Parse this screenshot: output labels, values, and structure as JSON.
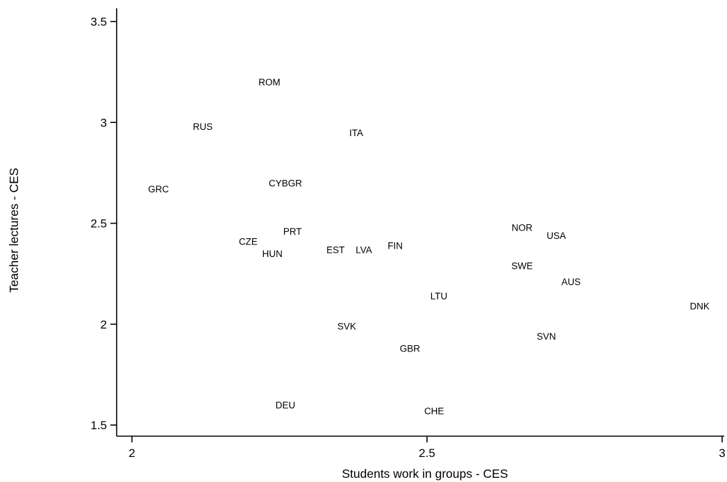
{
  "chart_data": {
    "type": "scatter",
    "xlabel": "Students work in groups - CES",
    "ylabel": "Teacher lectures - CES",
    "xlim": [
      2,
      3
    ],
    "ylim": [
      1.5,
      3.5
    ],
    "xticks": [
      "2",
      "2.5",
      "3"
    ],
    "yticks": [
      "1.5",
      "2",
      "2.5",
      "3",
      "3.5"
    ],
    "xtick_values": [
      2,
      2.5,
      3
    ],
    "ytick_values": [
      1.5,
      2,
      2.5,
      3,
      3.5
    ],
    "grid": false,
    "marker": "country-code text labels",
    "points": [
      {
        "label": "ROM",
        "x": 2.233,
        "y": 3.2
      },
      {
        "label": "RUS",
        "x": 2.12,
        "y": 2.98
      },
      {
        "label": "ITA",
        "x": 2.38,
        "y": 2.95
      },
      {
        "label": "GRC",
        "x": 2.045,
        "y": 2.67
      },
      {
        "label": "CYBGR",
        "x": 2.26,
        "y": 2.7
      },
      {
        "label": "PRT",
        "x": 2.272,
        "y": 2.46
      },
      {
        "label": "CZE",
        "x": 2.197,
        "y": 2.41
      },
      {
        "label": "HUN",
        "x": 2.238,
        "y": 2.35
      },
      {
        "label": "EST",
        "x": 2.345,
        "y": 2.37
      },
      {
        "label": "LVA",
        "x": 2.393,
        "y": 2.37
      },
      {
        "label": "FIN",
        "x": 2.446,
        "y": 2.39
      },
      {
        "label": "NOR",
        "x": 2.661,
        "y": 2.48
      },
      {
        "label": "USA",
        "x": 2.719,
        "y": 2.44
      },
      {
        "label": "SWE",
        "x": 2.661,
        "y": 2.29
      },
      {
        "label": "AUS",
        "x": 2.744,
        "y": 2.21
      },
      {
        "label": "LTU",
        "x": 2.52,
        "y": 2.14
      },
      {
        "label": "DNK",
        "x": 2.962,
        "y": 2.09
      },
      {
        "label": "SVK",
        "x": 2.364,
        "y": 1.99
      },
      {
        "label": "SVN",
        "x": 2.702,
        "y": 1.94
      },
      {
        "label": "GBR",
        "x": 2.471,
        "y": 1.88
      },
      {
        "label": "DEU",
        "x": 2.26,
        "y": 1.6
      },
      {
        "label": "CHE",
        "x": 2.512,
        "y": 1.57
      }
    ]
  }
}
